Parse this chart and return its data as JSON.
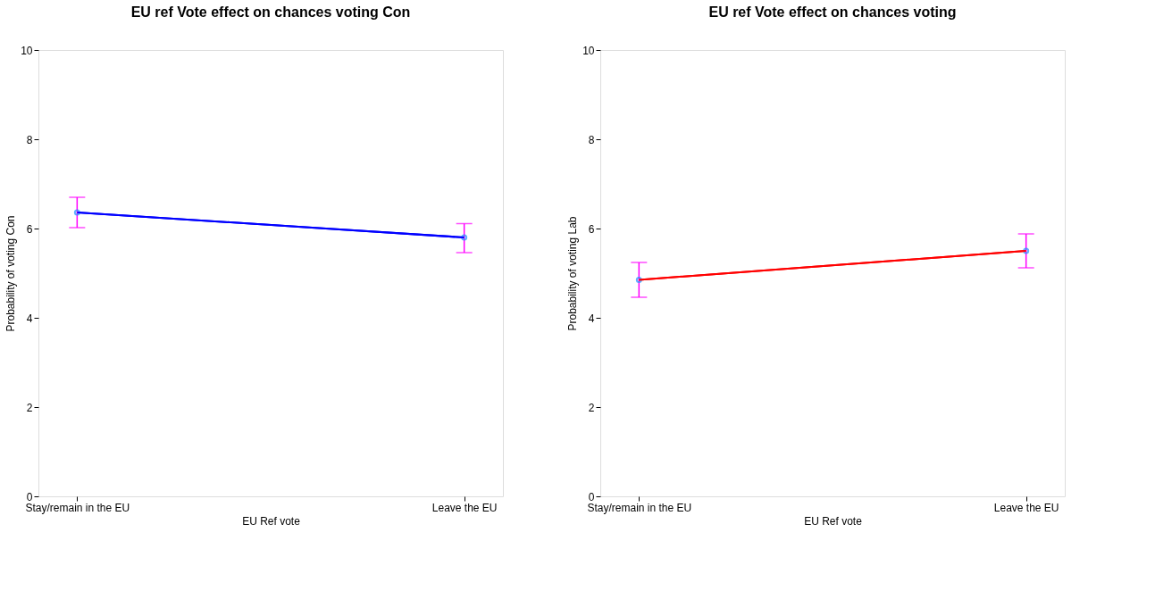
{
  "chart_data": [
    {
      "type": "line",
      "title": "EU ref Vote effect on chances voting Con",
      "xlabel": "EU Ref vote",
      "ylabel": "Probability of voting Con",
      "categories": [
        "Stay/remain in the EU",
        "Leave the EU"
      ],
      "ylim": [
        0,
        10
      ],
      "yticks": [
        0,
        2,
        4,
        6,
        8,
        10
      ],
      "grid": false,
      "marker": "circle",
      "series": [
        {
          "color": "#0000ff",
          "values": [
            6.36,
            5.8
          ],
          "errors": [
            [
              6.02,
              6.7
            ],
            [
              5.46,
              6.11
            ]
          ]
        }
      ]
    },
    {
      "type": "line",
      "title": "EU ref Vote effect on chances voting",
      "xlabel": "EU Ref vote",
      "ylabel": "Probability of voting Lab",
      "categories": [
        "Stay/remain in the EU",
        "Leave the EU"
      ],
      "ylim": [
        0,
        10
      ],
      "yticks": [
        0,
        2,
        4,
        6,
        8,
        10
      ],
      "grid": false,
      "marker": "circle",
      "series": [
        {
          "color": "#ff0000",
          "values": [
            4.85,
            5.5
          ],
          "errors": [
            [
              4.46,
              5.24
            ],
            [
              5.12,
              5.88
            ]
          ]
        }
      ]
    }
  ]
}
